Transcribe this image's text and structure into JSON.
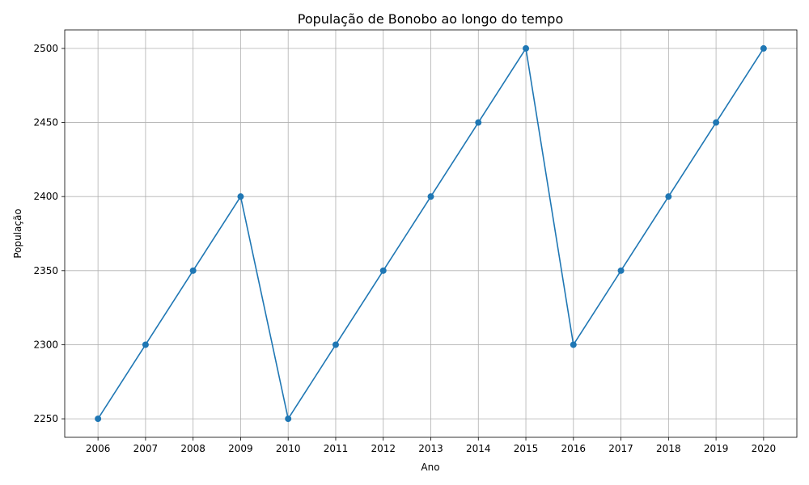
{
  "chart_data": {
    "type": "line",
    "title": "População de Bonobo ao longo do tempo",
    "xlabel": "Ano",
    "ylabel": "População",
    "x": [
      2006,
      2007,
      2008,
      2009,
      2010,
      2011,
      2012,
      2013,
      2014,
      2015,
      2016,
      2017,
      2018,
      2019,
      2020
    ],
    "series": [
      {
        "values": [
          2250,
          2300,
          2350,
          2400,
          2250,
          2300,
          2350,
          2400,
          2450,
          2500,
          2300,
          2350,
          2400,
          2450,
          2500
        ],
        "color": "#1f77b4",
        "marker": "circle"
      }
    ],
    "xlim": [
      2005.3,
      2020.7
    ],
    "ylim": [
      2237.5,
      2512.5
    ],
    "yticks": [
      2250,
      2300,
      2350,
      2400,
      2450,
      2500
    ],
    "grid": true
  }
}
